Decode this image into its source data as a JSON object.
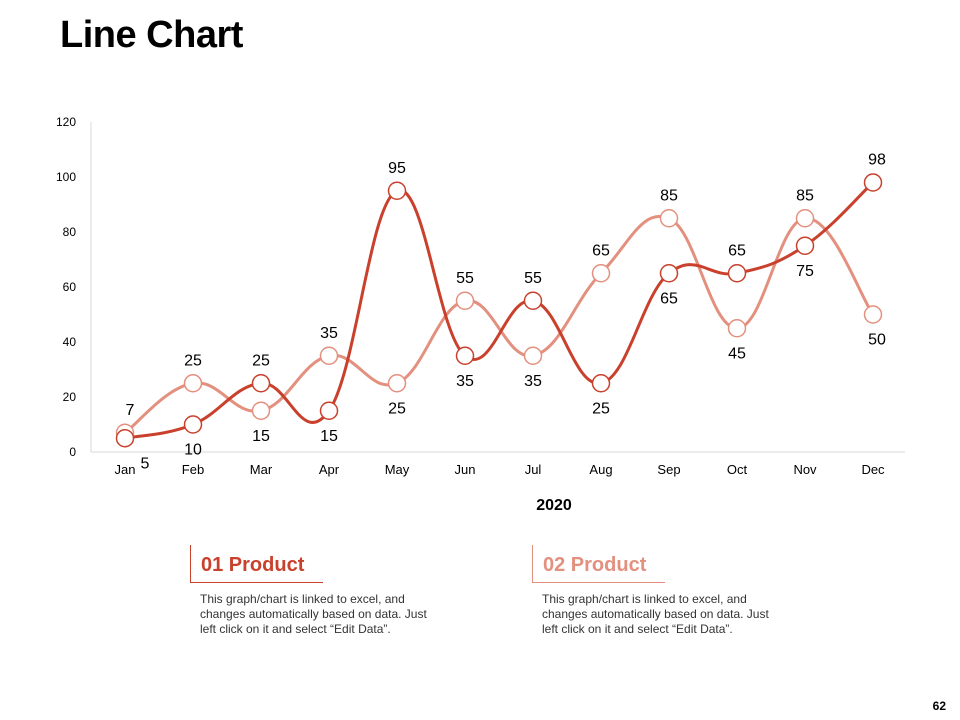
{
  "page": {
    "title": "Line Chart",
    "page_number": "62"
  },
  "colors": {
    "product1": "#C9412C",
    "product2": "#E3907F",
    "axis": "#D9D9D9",
    "text": "#000000"
  },
  "chart_data": {
    "type": "line",
    "title": "Line Chart",
    "xlabel": "2020",
    "ylabel": "",
    "ylim": [
      0,
      120
    ],
    "yticks": [
      "0",
      "20",
      "40",
      "60",
      "80",
      "100",
      "120"
    ],
    "categories": [
      "Jan",
      "Feb",
      "Mar",
      "Apr",
      "May",
      "Jun",
      "Jul",
      "Aug",
      "Sep",
      "Oct",
      "Nov",
      "Dec"
    ],
    "series": [
      {
        "name": "01 Product",
        "values": [
          5,
          10,
          25,
          15,
          95,
          35,
          55,
          25,
          65,
          65,
          75,
          98
        ]
      },
      {
        "name": "02 Product",
        "values": [
          7,
          25,
          15,
          35,
          25,
          55,
          35,
          65,
          85,
          45,
          85,
          50
        ]
      }
    ],
    "grid": false
  },
  "products": [
    {
      "label": "01 Product",
      "description": "This graph/chart is linked to excel, and changes automatically based on data. Just left click on it and select “Edit Data”."
    },
    {
      "label": "02 Product",
      "description": "This graph/chart is linked to excel, and changes automatically based on data. Just left click on it and select “Edit Data”."
    }
  ]
}
